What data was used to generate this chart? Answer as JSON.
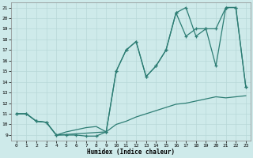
{
  "bg_color": "#ceeaea",
  "grid_color": "#b8d8d8",
  "line_color": "#2d7d74",
  "xlabel": "Humidex (Indice chaleur)",
  "xlim": [
    -0.5,
    23.5
  ],
  "ylim": [
    8.5,
    21.5
  ],
  "xticks": [
    0,
    1,
    2,
    3,
    4,
    5,
    6,
    7,
    8,
    9,
    10,
    11,
    12,
    13,
    14,
    15,
    16,
    17,
    18,
    19,
    20,
    21,
    22,
    23
  ],
  "yticks": [
    9,
    10,
    11,
    12,
    13,
    14,
    15,
    16,
    17,
    18,
    19,
    20,
    21
  ],
  "line1_x": [
    0,
    1,
    2,
    3,
    4,
    5,
    6,
    7,
    8,
    9
  ],
  "line1_y": [
    11,
    11,
    10.3,
    10.2,
    9.0,
    9.0,
    9.0,
    8.9,
    8.9,
    9.3
  ],
  "line2_x": [
    0,
    1,
    2,
    3,
    4,
    5,
    6,
    7,
    8,
    9,
    10,
    11,
    12,
    13,
    14,
    15,
    16,
    17,
    18,
    19,
    20,
    21,
    22,
    23
  ],
  "line2_y": [
    11,
    11,
    10.3,
    10.2,
    9.0,
    9.3,
    9.5,
    9.7,
    9.8,
    9.3,
    10.0,
    10.3,
    10.7,
    11.0,
    11.3,
    11.6,
    11.9,
    12.0,
    12.2,
    12.4,
    12.6,
    12.5,
    12.6,
    12.7
  ],
  "line3_x": [
    0,
    1,
    2,
    3,
    4,
    9,
    10,
    11,
    12,
    13,
    14,
    15,
    16,
    17,
    18,
    19,
    20,
    21,
    22,
    23
  ],
  "line3_y": [
    11,
    11,
    10.3,
    10.2,
    9.0,
    9.3,
    15.0,
    17.0,
    17.8,
    14.5,
    15.5,
    17.0,
    20.5,
    18.3,
    19.0,
    19.0,
    15.5,
    21.0,
    21.0,
    13.5
  ],
  "line4_x": [
    9,
    10,
    11,
    12,
    13,
    14,
    15,
    16,
    17,
    18,
    19,
    20,
    21,
    22,
    23
  ],
  "line4_y": [
    9.3,
    15.0,
    17.0,
    17.8,
    14.5,
    15.5,
    17.0,
    20.5,
    21.0,
    18.3,
    19.0,
    19.0,
    21.0,
    21.0,
    13.5
  ]
}
